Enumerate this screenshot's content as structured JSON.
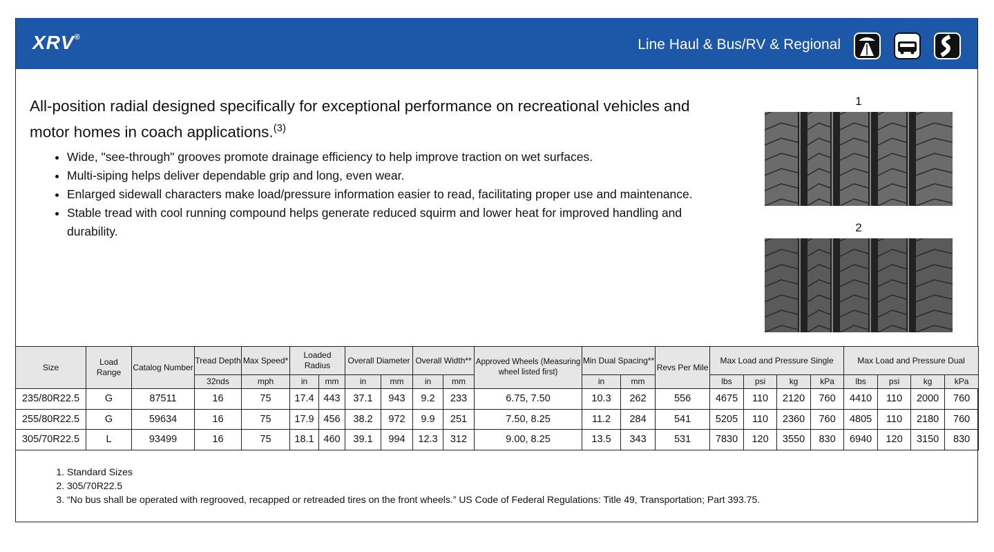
{
  "header": {
    "logo": "XRV",
    "logo_mark": "®",
    "applications": "Line Haul & Bus/RV & Regional"
  },
  "description": {
    "headline": "All-position radial designed specifically for exceptional performance on recreational vehicles and motor homes in coach applications.",
    "headline_note": "(3)",
    "bullets": [
      "Wide, \"see-through\" grooves promote drainage efficiency to help improve traction on wet surfaces.",
      "Multi-siping helps deliver dependable grip and long, even wear.",
      "Enlarged sidewall characters make load/pressure information easier to read, facilitating proper use and maintenance.",
      "Stable tread with cool running compound helps generate reduced squirm and lower heat for improved handling and durability."
    ]
  },
  "images": [
    {
      "label": "1"
    },
    {
      "label": "2"
    }
  ],
  "table": {
    "header_row1": [
      "Size",
      "Load Range",
      "Catalog Number",
      "Tread Depth",
      "Max Speed*",
      "Loaded Radius",
      "Overall Diameter",
      "Overall Width**",
      "Approved Wheels (Measuring wheel listed first)",
      "Min Dual Spacing**",
      "Revs Per Mile",
      "Max Load and Pressure Single",
      "Max Load and Pressure Dual"
    ],
    "header_row2": [
      "32nds",
      "mph",
      "in",
      "mm",
      "in",
      "mm",
      "in",
      "mm",
      "in",
      "mm",
      "lbs",
      "psi",
      "kg",
      "kPa",
      "lbs",
      "psi",
      "kg",
      "kPa"
    ],
    "rows": [
      [
        "235/80R22.5",
        "G",
        "87511",
        "16",
        "75",
        "17.4",
        "443",
        "37.1",
        "943",
        "9.2",
        "233",
        "6.75, 7.50",
        "10.3",
        "262",
        "556",
        "4675",
        "110",
        "2120",
        "760",
        "4410",
        "110",
        "2000",
        "760"
      ],
      [
        "255/80R22.5",
        "G",
        "59634",
        "16",
        "75",
        "17.9",
        "456",
        "38.2",
        "972",
        "9.9",
        "251",
        "7.50, 8.25",
        "11.2",
        "284",
        "541",
        "5205",
        "110",
        "2360",
        "760",
        "4805",
        "110",
        "2180",
        "760"
      ],
      [
        "305/70R22.5",
        "L",
        "93499",
        "16",
        "75",
        "18.1",
        "460",
        "39.1",
        "994",
        "12.3",
        "312",
        "9.00, 8.25",
        "13.5",
        "343",
        "531",
        "7830",
        "120",
        "3550",
        "830",
        "6940",
        "120",
        "3150",
        "830"
      ]
    ]
  },
  "footnotes": [
    "Standard Sizes",
    "305/70R22.5",
    "“No bus shall be operated with regrooved, recapped or retreaded tires on the front wheels.” US Code of Federal Regulations: Title 49, Transportation; Part 393.75."
  ]
}
